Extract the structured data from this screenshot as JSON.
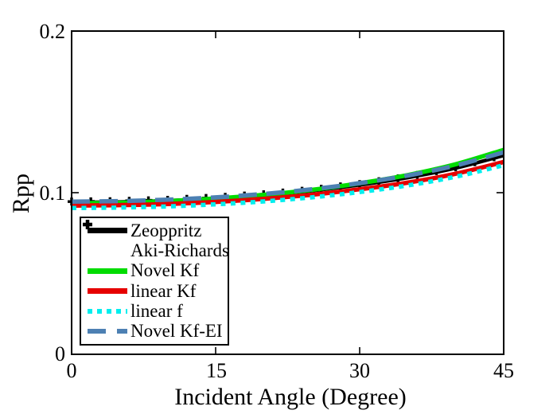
{
  "figure": {
    "background": "#ffffff",
    "frame_color": "#000000"
  },
  "chart_data": {
    "type": "line",
    "title": "",
    "xlabel": "Incident Angle (Degree)",
    "ylabel": "Rpp",
    "xlim": [
      0,
      45
    ],
    "ylim": [
      0,
      0.2
    ],
    "xticks": [
      0,
      15,
      30,
      45
    ],
    "yticks": [
      0,
      0.1,
      0.2
    ],
    "x_tick_labels": [
      "0",
      "15",
      "30",
      "45"
    ],
    "y_tick_labels": [
      "0",
      "0.1",
      "0.2"
    ],
    "grid": false,
    "legend_position": "inside-bottom-left",
    "x": [
      0,
      5,
      10,
      15,
      20,
      25,
      30,
      35,
      40,
      45
    ],
    "series": [
      {
        "name": "Zeoppritz",
        "color": "#000000",
        "style": "solid",
        "width": 4.5,
        "values": [
          0.094,
          0.0943,
          0.0951,
          0.0965,
          0.0985,
          0.1012,
          0.1048,
          0.1093,
          0.1152,
          0.123
        ]
      },
      {
        "name": "Aki-Richards",
        "color": "#000000",
        "style": "markers",
        "marker": "plus",
        "marker_step_deg": 2,
        "values": [
          0.094,
          0.0943,
          0.0951,
          0.0965,
          0.0985,
          0.1012,
          0.1048,
          0.1093,
          0.1152,
          0.123
        ]
      },
      {
        "name": "Novel Kf",
        "color": "#00DC00",
        "style": "solid",
        "width": 5.5,
        "values": [
          0.0935,
          0.0938,
          0.0948,
          0.0964,
          0.0986,
          0.1017,
          0.1058,
          0.1109,
          0.1176,
          0.1265
        ]
      },
      {
        "name": "linear Kf",
        "color": "#E60000",
        "style": "solid",
        "width": 5.5,
        "values": [
          0.092,
          0.0923,
          0.093,
          0.0943,
          0.0962,
          0.0987,
          0.1021,
          0.1062,
          0.1117,
          0.119
        ]
      },
      {
        "name": "linear f",
        "color": "#00EEEE",
        "style": "dotted",
        "width": 5.5,
        "values": [
          0.0905,
          0.0908,
          0.0915,
          0.0928,
          0.0946,
          0.0971,
          0.1004,
          0.1045,
          0.1099,
          0.117
        ]
      },
      {
        "name": "Novel Kf-EI",
        "color": "#4D80B3",
        "style": "dashed",
        "width": 5.5,
        "values": [
          0.0945,
          0.0948,
          0.0957,
          0.0971,
          0.0992,
          0.1021,
          0.1059,
          0.1106,
          0.1168,
          0.125
        ]
      }
    ]
  }
}
